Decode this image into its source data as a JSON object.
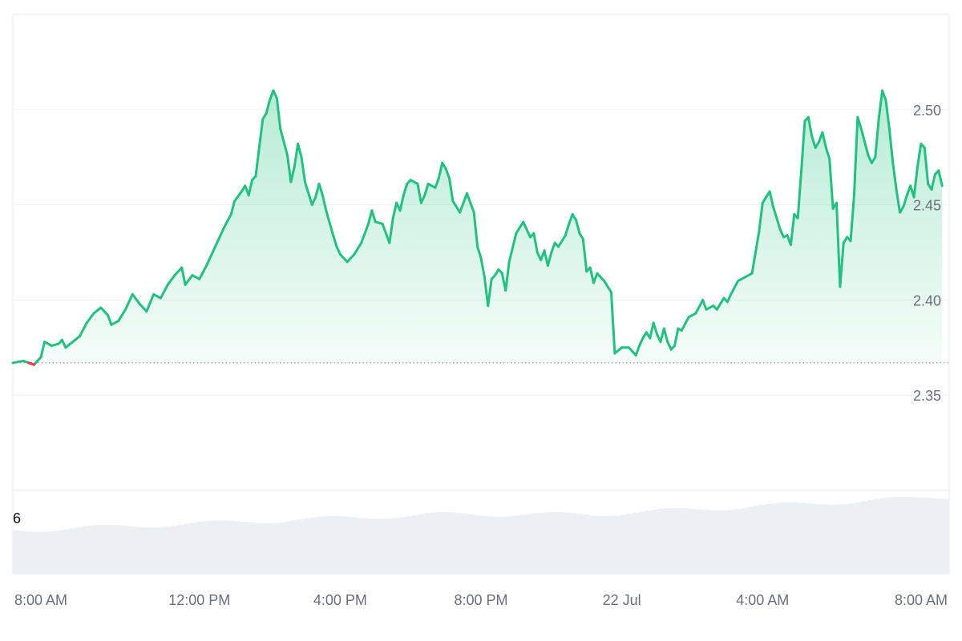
{
  "colors": {
    "up_line": "#1fc27e",
    "down_line": "#ea3943",
    "grid": "#eef0f3",
    "volume": "#eceff3",
    "baseline": "#8a8f99",
    "frame": "#e6e8ec"
  },
  "volume_panel": {
    "label": "6"
  },
  "chart_data": {
    "type": "area",
    "xlabel": "",
    "ylabel": "",
    "ylim": [
      2.3,
      2.55
    ],
    "y_ticks": [
      "2.50",
      "2.45",
      "2.40",
      "2.35"
    ],
    "x_ticks": [
      "8:00 AM",
      "12:00 PM",
      "4:00 PM",
      "8:00 PM",
      "22 Jul",
      "4:00 AM",
      "8:00 AM"
    ],
    "x_tick_hours": [
      0,
      4,
      8,
      12,
      16,
      20,
      24
    ],
    "x_range_hours": [
      -1.3,
      25.3
    ],
    "baseline": 2.367,
    "grid": true,
    "series": [
      {
        "points": [
          [
            -1.3,
            2.367
          ],
          [
            -1.0,
            2.368
          ],
          [
            -0.7,
            2.366
          ],
          [
            -0.5,
            2.37
          ],
          [
            -0.4,
            2.378
          ],
          [
            -0.2,
            2.376
          ],
          [
            0.0,
            2.377
          ],
          [
            0.1,
            2.379
          ],
          [
            0.2,
            2.375
          ],
          [
            0.4,
            2.378
          ],
          [
            0.6,
            2.381
          ],
          [
            0.8,
            2.388
          ],
          [
            1.0,
            2.393
          ],
          [
            1.2,
            2.396
          ],
          [
            1.4,
            2.392
          ],
          [
            1.5,
            2.387
          ],
          [
            1.7,
            2.389
          ],
          [
            1.9,
            2.395
          ],
          [
            2.1,
            2.403
          ],
          [
            2.3,
            2.398
          ],
          [
            2.5,
            2.394
          ],
          [
            2.7,
            2.403
          ],
          [
            2.9,
            2.401
          ],
          [
            3.1,
            2.408
          ],
          [
            3.3,
            2.413
          ],
          [
            3.5,
            2.417
          ],
          [
            3.6,
            2.408
          ],
          [
            3.8,
            2.413
          ],
          [
            4.0,
            2.411
          ],
          [
            4.2,
            2.418
          ],
          [
            4.5,
            2.43
          ],
          [
            4.7,
            2.438
          ],
          [
            4.9,
            2.445
          ],
          [
            5.0,
            2.452
          ],
          [
            5.2,
            2.457
          ],
          [
            5.3,
            2.46
          ],
          [
            5.4,
            2.455
          ],
          [
            5.5,
            2.463
          ],
          [
            5.6,
            2.465
          ],
          [
            5.7,
            2.48
          ],
          [
            5.8,
            2.495
          ],
          [
            5.9,
            2.498
          ],
          [
            6.0,
            2.505
          ],
          [
            6.1,
            2.51
          ],
          [
            6.2,
            2.506
          ],
          [
            6.3,
            2.49
          ],
          [
            6.5,
            2.476
          ],
          [
            6.6,
            2.462
          ],
          [
            6.7,
            2.47
          ],
          [
            6.8,
            2.482
          ],
          [
            6.9,
            2.475
          ],
          [
            7.0,
            2.462
          ],
          [
            7.2,
            2.45
          ],
          [
            7.3,
            2.454
          ],
          [
            7.4,
            2.461
          ],
          [
            7.5,
            2.455
          ],
          [
            7.6,
            2.447
          ],
          [
            7.8,
            2.434
          ],
          [
            7.9,
            2.428
          ],
          [
            8.0,
            2.424
          ],
          [
            8.2,
            2.42
          ],
          [
            8.4,
            2.424
          ],
          [
            8.6,
            2.43
          ],
          [
            8.8,
            2.44
          ],
          [
            8.9,
            2.447
          ],
          [
            9.0,
            2.441
          ],
          [
            9.2,
            2.44
          ],
          [
            9.4,
            2.43
          ],
          [
            9.5,
            2.443
          ],
          [
            9.6,
            2.451
          ],
          [
            9.7,
            2.447
          ],
          [
            9.8,
            2.455
          ],
          [
            9.9,
            2.461
          ],
          [
            10.0,
            2.463
          ],
          [
            10.2,
            2.461
          ],
          [
            10.3,
            2.451
          ],
          [
            10.4,
            2.455
          ],
          [
            10.5,
            2.461
          ],
          [
            10.7,
            2.459
          ],
          [
            10.8,
            2.464
          ],
          [
            10.9,
            2.472
          ],
          [
            11.0,
            2.469
          ],
          [
            11.1,
            2.464
          ],
          [
            11.2,
            2.452
          ],
          [
            11.4,
            2.446
          ],
          [
            11.5,
            2.451
          ],
          [
            11.6,
            2.456
          ],
          [
            11.8,
            2.446
          ],
          [
            11.9,
            2.428
          ],
          [
            12.0,
            2.422
          ],
          [
            12.1,
            2.412
          ],
          [
            12.2,
            2.397
          ],
          [
            12.3,
            2.411
          ],
          [
            12.4,
            2.413
          ],
          [
            12.5,
            2.416
          ],
          [
            12.6,
            2.414
          ],
          [
            12.7,
            2.405
          ],
          [
            12.8,
            2.42
          ],
          [
            13.0,
            2.435
          ],
          [
            13.2,
            2.441
          ],
          [
            13.4,
            2.433
          ],
          [
            13.5,
            2.435
          ],
          [
            13.6,
            2.425
          ],
          [
            13.7,
            2.421
          ],
          [
            13.8,
            2.426
          ],
          [
            13.9,
            2.418
          ],
          [
            14.0,
            2.425
          ],
          [
            14.1,
            2.43
          ],
          [
            14.2,
            2.428
          ],
          [
            14.4,
            2.434
          ],
          [
            14.5,
            2.44
          ],
          [
            14.6,
            2.445
          ],
          [
            14.7,
            2.442
          ],
          [
            14.8,
            2.435
          ],
          [
            14.9,
            2.432
          ],
          [
            15.0,
            2.415
          ],
          [
            15.1,
            2.417
          ],
          [
            15.2,
            2.409
          ],
          [
            15.3,
            2.414
          ],
          [
            15.5,
            2.41
          ],
          [
            15.7,
            2.404
          ],
          [
            15.8,
            2.372
          ],
          [
            16.0,
            2.375
          ],
          [
            16.2,
            2.375
          ],
          [
            16.4,
            2.371
          ],
          [
            16.5,
            2.376
          ],
          [
            16.6,
            2.38
          ],
          [
            16.7,
            2.383
          ],
          [
            16.8,
            2.38
          ],
          [
            16.9,
            2.388
          ],
          [
            17.0,
            2.382
          ],
          [
            17.1,
            2.378
          ],
          [
            17.2,
            2.385
          ],
          [
            17.3,
            2.378
          ],
          [
            17.4,
            2.374
          ],
          [
            17.5,
            2.376
          ],
          [
            17.6,
            2.385
          ],
          [
            17.7,
            2.384
          ],
          [
            17.9,
            2.391
          ],
          [
            18.1,
            2.393
          ],
          [
            18.3,
            2.4
          ],
          [
            18.4,
            2.395
          ],
          [
            18.6,
            2.397
          ],
          [
            18.7,
            2.395
          ],
          [
            18.9,
            2.401
          ],
          [
            19.0,
            2.399
          ],
          [
            19.1,
            2.403
          ],
          [
            19.3,
            2.41
          ],
          [
            19.5,
            2.412
          ],
          [
            19.7,
            2.414
          ],
          [
            19.8,
            2.425
          ],
          [
            19.9,
            2.436
          ],
          [
            20.0,
            2.451
          ],
          [
            20.2,
            2.457
          ],
          [
            20.3,
            2.449
          ],
          [
            20.4,
            2.443
          ],
          [
            20.5,
            2.437
          ],
          [
            20.6,
            2.433
          ],
          [
            20.7,
            2.434
          ],
          [
            20.8,
            2.429
          ],
          [
            20.9,
            2.445
          ],
          [
            21.0,
            2.443
          ],
          [
            21.1,
            2.468
          ],
          [
            21.2,
            2.494
          ],
          [
            21.3,
            2.496
          ],
          [
            21.4,
            2.486
          ],
          [
            21.5,
            2.48
          ],
          [
            21.6,
            2.483
          ],
          [
            21.7,
            2.488
          ],
          [
            21.8,
            2.48
          ],
          [
            21.9,
            2.474
          ],
          [
            22.0,
            2.448
          ],
          [
            22.1,
            2.451
          ],
          [
            22.2,
            2.407
          ],
          [
            22.3,
            2.43
          ],
          [
            22.4,
            2.433
          ],
          [
            22.5,
            2.431
          ],
          [
            22.6,
            2.455
          ],
          [
            22.7,
            2.496
          ],
          [
            22.8,
            2.49
          ],
          [
            22.9,
            2.483
          ],
          [
            23.0,
            2.476
          ],
          [
            23.1,
            2.472
          ],
          [
            23.2,
            2.475
          ],
          [
            23.3,
            2.495
          ],
          [
            23.4,
            2.51
          ],
          [
            23.5,
            2.505
          ],
          [
            23.6,
            2.49
          ],
          [
            23.7,
            2.472
          ],
          [
            23.8,
            2.458
          ],
          [
            23.9,
            2.446
          ],
          [
            24.0,
            2.449
          ],
          [
            24.1,
            2.455
          ],
          [
            24.2,
            2.46
          ],
          [
            24.3,
            2.454
          ],
          [
            24.4,
            2.47
          ],
          [
            24.5,
            2.482
          ],
          [
            24.6,
            2.48
          ],
          [
            24.7,
            2.461
          ],
          [
            24.8,
            2.458
          ],
          [
            24.9,
            2.466
          ],
          [
            25.0,
            2.468
          ],
          [
            25.1,
            2.46
          ]
        ]
      }
    ]
  }
}
